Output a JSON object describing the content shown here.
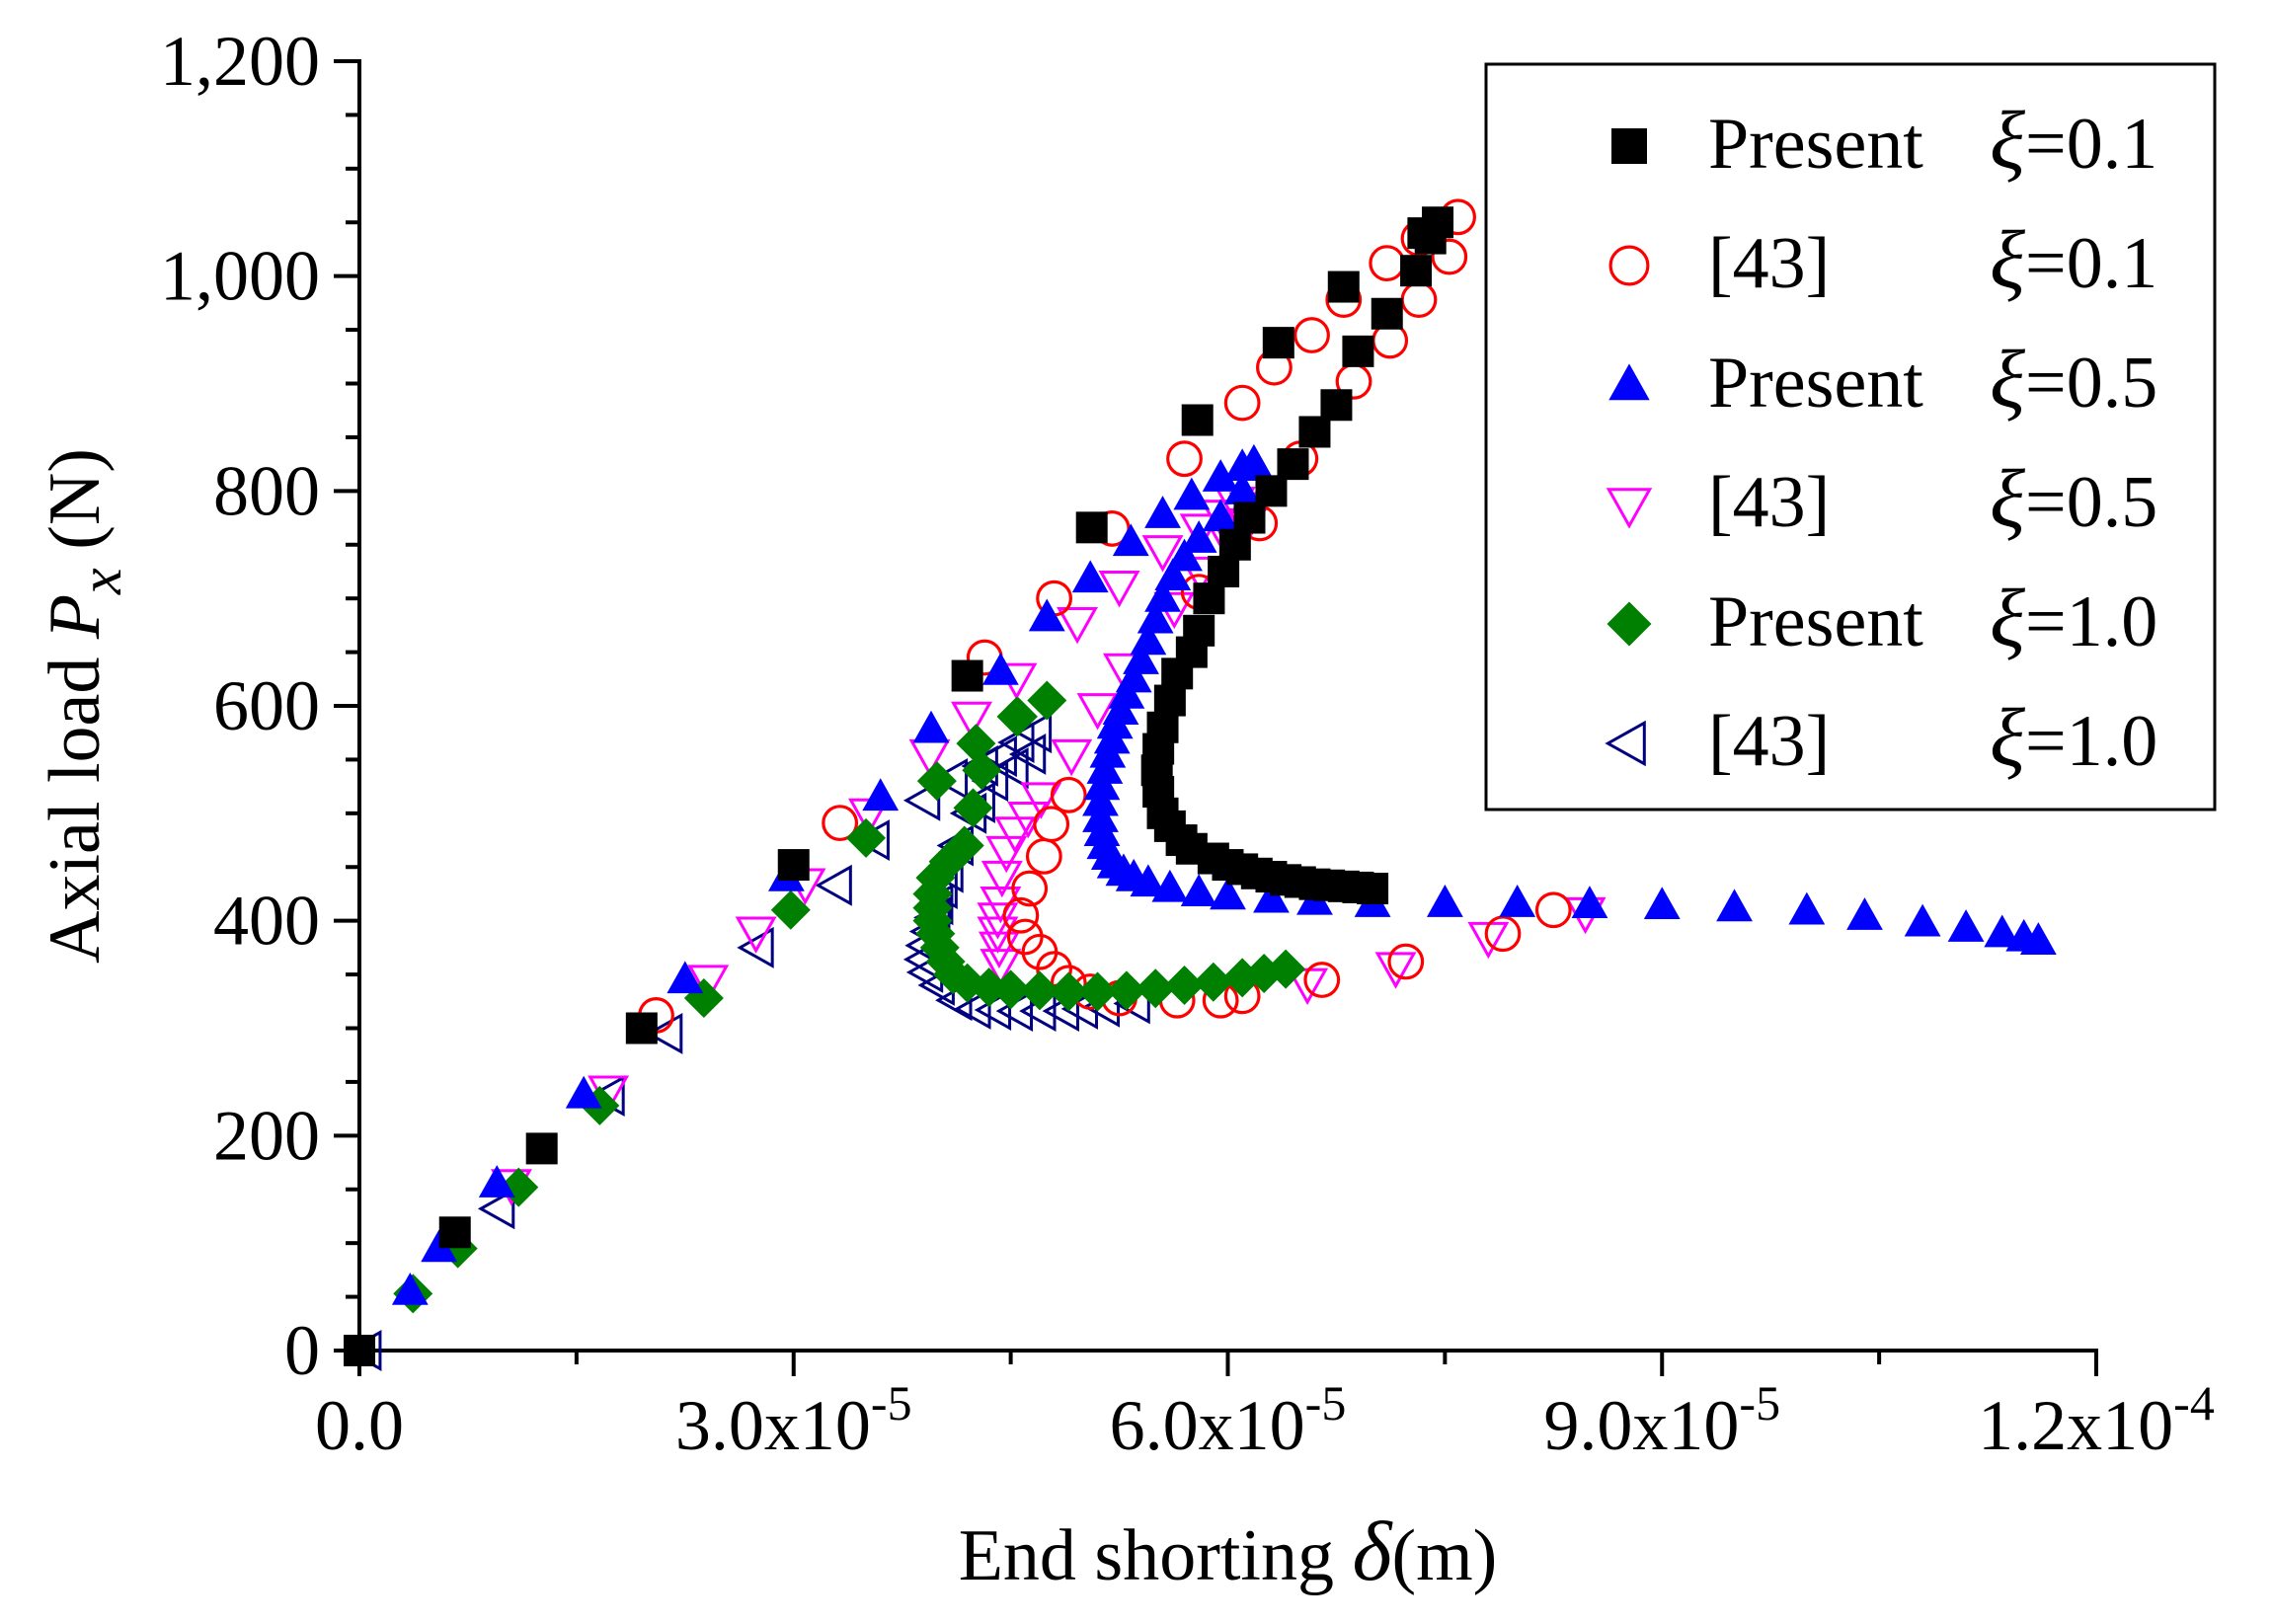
{
  "chart_data": {
    "type": "scatter",
    "xlabel": {
      "prefix": "End shorting ",
      "symbol": "δ",
      "suffix": "(m)"
    },
    "ylabel": {
      "prefix": "Axial load ",
      "symbol": "P",
      "subscript": "x",
      "suffix": " (N)"
    },
    "xlim": [
      0,
      0.00012
    ],
    "ylim": [
      0,
      1200
    ],
    "x_ticks": [
      {
        "value": 0,
        "mantissa": "0.0",
        "exponent": ""
      },
      {
        "value": 3e-05,
        "mantissa": "3.0x10",
        "exponent": "-5"
      },
      {
        "value": 6e-05,
        "mantissa": "6.0x10",
        "exponent": "-5"
      },
      {
        "value": 9e-05,
        "mantissa": "9.0x10",
        "exponent": "-5"
      },
      {
        "value": 0.00012,
        "mantissa": "1.2x10",
        "exponent": "-4"
      }
    ],
    "y_ticks": [
      {
        "value": 0,
        "label": "0"
      },
      {
        "value": 200,
        "label": "200"
      },
      {
        "value": 400,
        "label": "400"
      },
      {
        "value": 600,
        "label": "600"
      },
      {
        "value": 800,
        "label": "800"
      },
      {
        "value": 1000,
        "label": "1,000"
      },
      {
        "value": 1200,
        "label": "1,200"
      }
    ],
    "legend_position": "top-right",
    "series": [
      {
        "name": "Present ξ=0.1",
        "legend_name": "Present",
        "xi": "=0.1",
        "marker": "square-filled",
        "color": "#000000",
        "points": [
          [
            0,
            0
          ],
          [
            6.6e-06,
            110
          ],
          [
            1.26e-05,
            188
          ],
          [
            1.95e-05,
            300
          ],
          [
            3e-05,
            452
          ],
          [
            4.2e-05,
            628
          ],
          [
            5.06e-05,
            766
          ],
          [
            5.79e-05,
            866
          ],
          [
            6.35e-05,
            938
          ],
          [
            6.8e-05,
            990
          ],
          [
            7.35e-05,
            1040
          ],
          [
            7.45e-05,
            1050
          ],
          [
            7.4e-05,
            1035
          ],
          [
            7.3e-05,
            1005
          ],
          [
            7.1e-05,
            965
          ],
          [
            6.9e-05,
            930
          ],
          [
            6.75e-05,
            880
          ],
          [
            6.6e-05,
            855
          ],
          [
            6.45e-05,
            825
          ],
          [
            6.3e-05,
            800
          ],
          [
            6.15e-05,
            775
          ],
          [
            6.05e-05,
            750
          ],
          [
            5.97e-05,
            725
          ],
          [
            5.87e-05,
            700
          ],
          [
            5.8e-05,
            670
          ],
          [
            5.75e-05,
            650
          ],
          [
            5.65e-05,
            630
          ],
          [
            5.6e-05,
            605
          ],
          [
            5.55e-05,
            580
          ],
          [
            5.52e-05,
            560
          ],
          [
            5.51e-05,
            540
          ],
          [
            5.52e-05,
            520
          ],
          [
            5.55e-05,
            500
          ],
          [
            5.6e-05,
            488
          ],
          [
            5.68e-05,
            475
          ],
          [
            5.75e-05,
            467
          ],
          [
            5.9e-05,
            458
          ],
          [
            6e-05,
            452
          ],
          [
            6.1e-05,
            448
          ],
          [
            6.2e-05,
            444
          ],
          [
            6.3e-05,
            441
          ],
          [
            6.4e-05,
            438
          ],
          [
            6.5e-05,
            436
          ],
          [
            6.6e-05,
            434
          ],
          [
            6.7e-05,
            433
          ],
          [
            6.8e-05,
            432
          ],
          [
            6.9e-05,
            431
          ],
          [
            7e-05,
            430
          ]
        ]
      },
      {
        "name": "[43] ξ=0.1",
        "legend_name": "[43]",
        "xi": "=0.1",
        "marker": "circle-open",
        "color": "#ff0000",
        "points": [
          [
            2.05e-05,
            312
          ],
          [
            3.32e-05,
            491
          ],
          [
            4.32e-05,
            645
          ],
          [
            4.8e-05,
            700
          ],
          [
            5.2e-05,
            765
          ],
          [
            5.7e-05,
            830
          ],
          [
            6.1e-05,
            882
          ],
          [
            6.32e-05,
            915
          ],
          [
            6.58e-05,
            945
          ],
          [
            6.8e-05,
            978
          ],
          [
            7.1e-05,
            1012
          ],
          [
            7.32e-05,
            1035
          ],
          [
            7.59e-05,
            1055
          ],
          [
            7.53e-05,
            1018
          ],
          [
            7.32e-05,
            978
          ],
          [
            7.12e-05,
            940
          ],
          [
            6.87e-05,
            902
          ],
          [
            6.5e-05,
            830
          ],
          [
            6.22e-05,
            770
          ],
          [
            5.8e-05,
            706
          ],
          [
            4.9e-05,
            517
          ],
          [
            4.78e-05,
            490
          ],
          [
            4.73e-05,
            460
          ],
          [
            4.63e-05,
            430
          ],
          [
            4.57e-05,
            405
          ],
          [
            4.6e-05,
            385
          ],
          [
            4.7e-05,
            371
          ],
          [
            4.8e-05,
            355
          ],
          [
            4.9e-05,
            342
          ],
          [
            5.05e-05,
            334
          ],
          [
            5.25e-05,
            328
          ],
          [
            5.65e-05,
            326
          ],
          [
            5.95e-05,
            326
          ],
          [
            6.1e-05,
            330
          ],
          [
            6.65e-05,
            345
          ],
          [
            7.23e-05,
            362
          ],
          [
            7.9e-05,
            388
          ],
          [
            8.25e-05,
            410
          ]
        ]
      },
      {
        "name": "Present ξ=0.5",
        "legend_name": "Present",
        "xi": "=0.5",
        "marker": "triangle-up-filled",
        "color": "#0000ff",
        "points": [
          [
            3.5e-06,
            55
          ],
          [
            5.5e-06,
            95
          ],
          [
            9.5e-06,
            155
          ],
          [
            1.55e-05,
            238
          ],
          [
            2.25e-05,
            345
          ],
          [
            2.95e-05,
            440
          ],
          [
            3.6e-05,
            515
          ],
          [
            3.95e-05,
            578
          ],
          [
            4.43e-05,
            632
          ],
          [
            4.75e-05,
            682
          ],
          [
            5.05e-05,
            718
          ],
          [
            5.33e-05,
            752
          ],
          [
            5.55e-05,
            778
          ],
          [
            5.75e-05,
            795
          ],
          [
            5.95e-05,
            812
          ],
          [
            6.1e-05,
            822
          ],
          [
            6.18e-05,
            826
          ],
          [
            6.1e-05,
            800
          ],
          [
            5.95e-05,
            775
          ],
          [
            5.8e-05,
            755
          ],
          [
            5.7e-05,
            738
          ],
          [
            5.62e-05,
            720
          ],
          [
            5.55e-05,
            700
          ],
          [
            5.5e-05,
            680
          ],
          [
            5.45e-05,
            660
          ],
          [
            5.4e-05,
            642
          ],
          [
            5.35e-05,
            625
          ],
          [
            5.3e-05,
            610
          ],
          [
            5.26e-05,
            595
          ],
          [
            5.22e-05,
            582
          ],
          [
            5.2e-05,
            568
          ],
          [
            5.17e-05,
            555
          ],
          [
            5.15e-05,
            540
          ],
          [
            5.13e-05,
            525
          ],
          [
            5.12e-05,
            510
          ],
          [
            5.12e-05,
            495
          ],
          [
            5.13e-05,
            482
          ],
          [
            5.15e-05,
            470
          ],
          [
            5.18e-05,
            460
          ],
          [
            5.22e-05,
            452
          ],
          [
            5.28e-05,
            445
          ],
          [
            5.35e-05,
            440
          ],
          [
            5.45e-05,
            435
          ],
          [
            5.6e-05,
            430
          ],
          [
            5.8e-05,
            426
          ],
          [
            6e-05,
            423
          ],
          [
            6.3e-05,
            420
          ],
          [
            6.6e-05,
            418
          ],
          [
            7e-05,
            416
          ],
          [
            7.5e-05,
            416
          ],
          [
            8e-05,
            416
          ],
          [
            8.5e-05,
            415
          ],
          [
            9e-05,
            414
          ],
          [
            9.5e-05,
            412
          ],
          [
            0.0001,
            409
          ],
          [
            0.000104,
            404
          ],
          [
            0.000108,
            398
          ],
          [
            0.000111,
            393
          ],
          [
            0.0001135,
            388
          ],
          [
            0.000115,
            384
          ],
          [
            0.000116,
            381
          ]
        ]
      },
      {
        "name": "[43] ξ=0.5",
        "legend_name": "[43]",
        "xi": "=0.5",
        "marker": "triangle-down-open",
        "color": "#ff00ff",
        "points": [
          [
            1.05e-05,
            155
          ],
          [
            1.72e-05,
            242
          ],
          [
            2.41e-05,
            345
          ],
          [
            2.74e-05,
            390
          ],
          [
            3.08e-05,
            435
          ],
          [
            3.52e-05,
            500
          ],
          [
            3.94e-05,
            555
          ],
          [
            4.23e-05,
            590
          ],
          [
            4.54e-05,
            626
          ],
          [
            4.96e-05,
            678
          ],
          [
            5.25e-05,
            712
          ],
          [
            5.55e-05,
            745
          ],
          [
            5.81e-05,
            765
          ],
          [
            5.95e-05,
            778
          ],
          [
            6.05e-05,
            790
          ],
          [
            6.15e-05,
            785
          ],
          [
            6.13e-05,
            770
          ],
          [
            6e-05,
            755
          ],
          [
            5.81e-05,
            725
          ],
          [
            5.63e-05,
            692
          ],
          [
            5.28e-05,
            635
          ],
          [
            5.1e-05,
            598
          ],
          [
            4.92e-05,
            555
          ],
          [
            4.71e-05,
            515
          ],
          [
            4.62e-05,
            497
          ],
          [
            4.53e-05,
            483
          ],
          [
            4.47e-05,
            465
          ],
          [
            4.44e-05,
            442
          ],
          [
            4.43e-05,
            418
          ],
          [
            4.41e-05,
            403
          ],
          [
            4.41e-05,
            390
          ],
          [
            4.42e-05,
            376
          ],
          [
            4.43e-05,
            360
          ],
          [
            6.55e-05,
            342
          ],
          [
            7.16e-05,
            357
          ],
          [
            7.8e-05,
            385
          ],
          [
            8.47e-05,
            408
          ]
        ]
      },
      {
        "name": "Present ξ=1.0",
        "legend_name": "Present",
        "xi": "=1.0",
        "marker": "diamond-filled",
        "color": "#008000",
        "points": [
          [
            3.7e-06,
            53
          ],
          [
            6.8e-06,
            95
          ],
          [
            1.1e-05,
            152
          ],
          [
            1.66e-05,
            228
          ],
          [
            2.38e-05,
            328
          ],
          [
            2.98e-05,
            410
          ],
          [
            3.5e-05,
            477
          ],
          [
            3.99e-05,
            530
          ],
          [
            4.26e-05,
            565
          ],
          [
            4.54e-05,
            590
          ],
          [
            4.75e-05,
            605
          ],
          [
            4.55e-05,
            590
          ],
          [
            4.3e-05,
            540
          ],
          [
            4.24e-05,
            505
          ],
          [
            4.18e-05,
            470
          ],
          [
            4.07e-05,
            455
          ],
          [
            3.98e-05,
            440
          ],
          [
            3.96e-05,
            425
          ],
          [
            3.96e-05,
            412
          ],
          [
            3.96e-05,
            400
          ],
          [
            3.98e-05,
            388
          ],
          [
            4.01e-05,
            375
          ],
          [
            4.05e-05,
            362
          ],
          [
            4.1e-05,
            350
          ],
          [
            4.2e-05,
            342
          ],
          [
            4.35e-05,
            338
          ],
          [
            4.5e-05,
            336
          ],
          [
            4.7e-05,
            335
          ],
          [
            4.9e-05,
            334
          ],
          [
            5.1e-05,
            334
          ],
          [
            5.3e-05,
            335
          ],
          [
            5.5e-05,
            337
          ],
          [
            5.7e-05,
            340
          ],
          [
            5.9e-05,
            343
          ],
          [
            6.1e-05,
            347
          ],
          [
            6.25e-05,
            351
          ],
          [
            6.4e-05,
            355
          ]
        ]
      },
      {
        "name": "[43] ξ=1.0",
        "legend_name": "[43]",
        "xi": "=1.0",
        "marker": "triangle-left-open",
        "color": "#000080",
        "points": [
          [
            5e-07,
            0
          ],
          [
            9.7e-06,
            132
          ],
          [
            1.73e-05,
            237
          ],
          [
            2.13e-05,
            295
          ],
          [
            2.76e-05,
            375
          ],
          [
            3.3e-05,
            433
          ],
          [
            3.56e-05,
            475
          ],
          [
            3.91e-05,
            512
          ],
          [
            4.1e-05,
            532
          ],
          [
            4.31e-05,
            544
          ],
          [
            4.44e-05,
            553
          ],
          [
            4.56e-05,
            566
          ],
          [
            4.68e-05,
            575
          ],
          [
            4.64e-05,
            555
          ],
          [
            4.52e-05,
            542
          ],
          [
            4.38e-05,
            530
          ],
          [
            4.29e-05,
            510
          ],
          [
            4.23e-05,
            500
          ],
          [
            4.14e-05,
            470
          ],
          [
            4.07e-05,
            445
          ],
          [
            4.03e-05,
            430
          ],
          [
            4e-05,
            415
          ],
          [
            3.98e-05,
            403
          ],
          [
            3.95e-05,
            390
          ],
          [
            3.92e-05,
            377
          ],
          [
            3.91e-05,
            364
          ],
          [
            3.93e-05,
            352
          ],
          [
            4.01e-05,
            340
          ],
          [
            4.13e-05,
            326
          ],
          [
            4.26e-05,
            318
          ],
          [
            4.4e-05,
            317
          ],
          [
            4.55e-05,
            316
          ],
          [
            4.71e-05,
            316
          ],
          [
            4.87e-05,
            316
          ],
          [
            5e-05,
            318
          ],
          [
            5.15e-05,
            320
          ],
          [
            5.36e-05,
            323
          ]
        ]
      }
    ]
  }
}
